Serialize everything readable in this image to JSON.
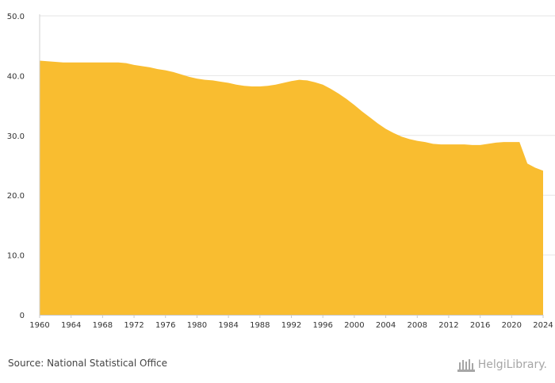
{
  "chart_data": {
    "type": "area",
    "title": "",
    "xlabel": "",
    "ylabel": "",
    "ylim": [
      0,
      50
    ],
    "xlim": [
      1960,
      2024
    ],
    "y_ticks": [
      "0",
      "10.0",
      "20.0",
      "30.0",
      "40.0",
      "50.0"
    ],
    "x_ticks": [
      "1960",
      "1964",
      "1968",
      "1972",
      "1976",
      "1980",
      "1984",
      "1988",
      "1992",
      "1996",
      "2000",
      "2004",
      "2008",
      "2012",
      "2016",
      "2020",
      "2024"
    ],
    "grid": true,
    "series": [
      {
        "name": "Value",
        "color": "#f9bd30",
        "x": [
          1960,
          1961,
          1962,
          1963,
          1964,
          1965,
          1966,
          1967,
          1968,
          1969,
          1970,
          1971,
          1972,
          1973,
          1974,
          1975,
          1976,
          1977,
          1978,
          1979,
          1980,
          1981,
          1982,
          1983,
          1984,
          1985,
          1986,
          1987,
          1988,
          1989,
          1990,
          1991,
          1992,
          1993,
          1994,
          1995,
          1996,
          1997,
          1998,
          1999,
          2000,
          2001,
          2002,
          2003,
          2004,
          2005,
          2006,
          2007,
          2008,
          2009,
          2010,
          2011,
          2012,
          2013,
          2014,
          2015,
          2016,
          2017,
          2018,
          2019,
          2020,
          2021,
          2022,
          2023,
          2024
        ],
        "values": [
          42.5,
          42.4,
          42.3,
          42.2,
          42.2,
          42.2,
          42.2,
          42.2,
          42.2,
          42.2,
          42.2,
          42.1,
          41.8,
          41.6,
          41.4,
          41.1,
          40.9,
          40.6,
          40.2,
          39.8,
          39.5,
          39.3,
          39.2,
          39.0,
          38.8,
          38.5,
          38.3,
          38.2,
          38.2,
          38.3,
          38.5,
          38.8,
          39.1,
          39.3,
          39.2,
          38.9,
          38.5,
          37.8,
          37.0,
          36.1,
          35.1,
          34.0,
          33.0,
          32.0,
          31.1,
          30.4,
          29.8,
          29.4,
          29.1,
          28.9,
          28.6,
          28.5,
          28.5,
          28.5,
          28.5,
          28.4,
          28.4,
          28.6,
          28.8,
          28.9,
          28.9,
          28.9,
          25.3,
          24.6,
          24.1
        ]
      }
    ]
  },
  "footer": {
    "source": "Source: National Statistical Office",
    "brand": "HelgiLibrary."
  }
}
